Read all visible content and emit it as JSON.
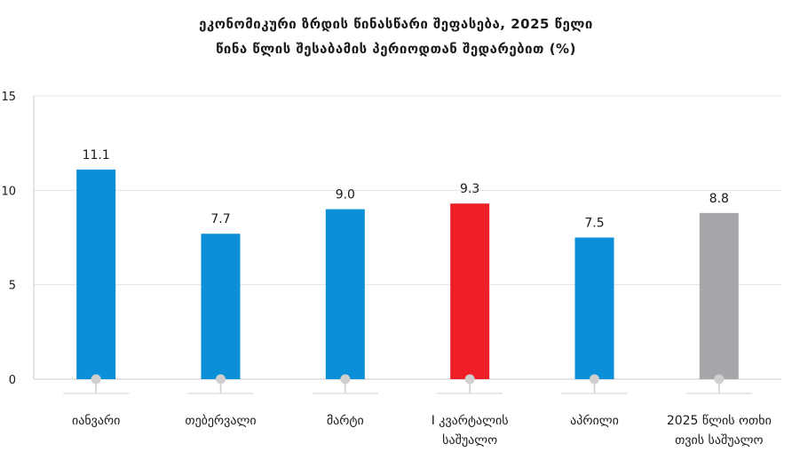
{
  "chart_data": {
    "type": "bar",
    "title_line1": "ეკონომიკური ზრდის წინასწარი შეფასება, 2025 წელი",
    "title_line2": "წინა წლის შესაბამის პერიოდთან შედარებით (%)",
    "categories": [
      [
        "იანვარი"
      ],
      [
        "თებერვალი"
      ],
      [
        "მარტი"
      ],
      [
        "I კვარტალის",
        "საშუალო"
      ],
      [
        "აპრილი"
      ],
      [
        "2025 წლის ოთხი",
        "თვის საშუალო"
      ]
    ],
    "values": [
      11.1,
      7.7,
      9.0,
      9.3,
      7.5,
      8.8
    ],
    "value_labels": [
      "11.1",
      "7.7",
      "9.0",
      "9.3",
      "7.5",
      "8.8"
    ],
    "bar_colors": [
      "#0a8fd8",
      "#0a8fd8",
      "#0a8fd8",
      "#ee1f26",
      "#0a8fd8",
      "#a7a7ab"
    ],
    "yticks": [
      "0",
      "5",
      "10",
      "15"
    ],
    "ytick_values": [
      0,
      5,
      10,
      15
    ],
    "ylim": [
      0,
      15
    ],
    "xlabel": "",
    "ylabel": "",
    "grid": true,
    "colors": {
      "grid": "#e3e3e3",
      "axis": "#c8c8c8",
      "marker": "#cfcfcf",
      "text": "#1a1a1a"
    }
  }
}
